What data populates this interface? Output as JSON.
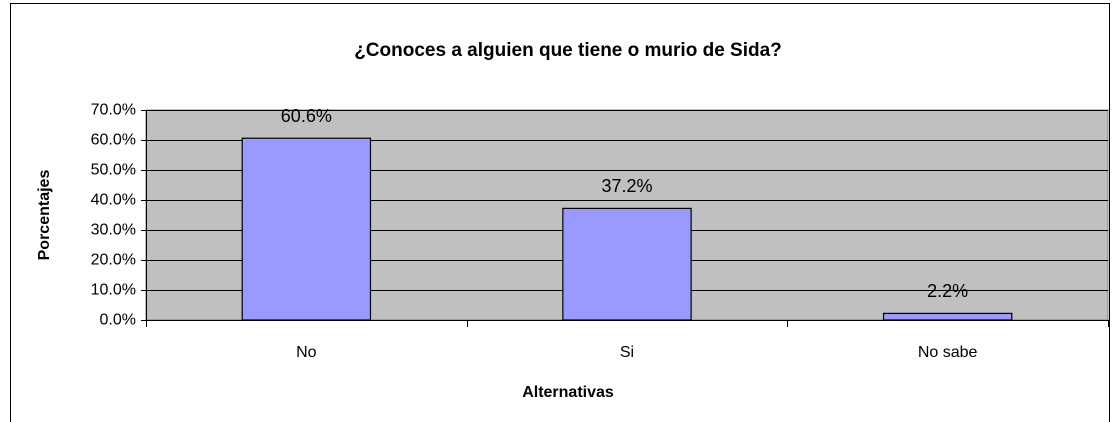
{
  "chart_data": {
    "type": "bar",
    "title": "¿Conoces a alguien que tiene o murio de Sida?",
    "x_label": "Alternativas",
    "y_label": "Porcentajes",
    "categories": [
      "No",
      "Si",
      "No sabe"
    ],
    "values": [
      60.6,
      37.2,
      2.2
    ],
    "value_labels": [
      "60.6%",
      "37.2%",
      "2.2%"
    ],
    "color": "#9999ff",
    "ylim": [
      0,
      70
    ],
    "yticks": [
      {
        "value": 0,
        "label": "0.0%"
      },
      {
        "value": 10,
        "label": "10.0%"
      },
      {
        "value": 20,
        "label": "20.0%"
      },
      {
        "value": 30,
        "label": "30.0%"
      },
      {
        "value": 40,
        "label": "40.0%"
      },
      {
        "value": 50,
        "label": "50.0%"
      },
      {
        "value": 60,
        "label": "60.0%"
      },
      {
        "value": 70,
        "label": "70.0%"
      }
    ],
    "grid": true
  }
}
